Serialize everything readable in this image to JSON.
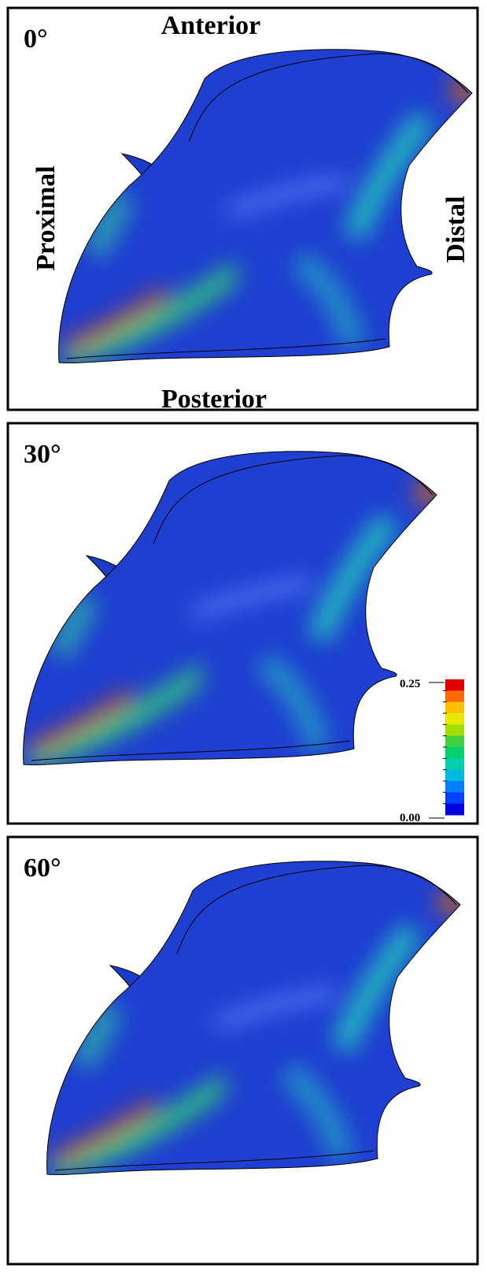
{
  "panels": [
    {
      "angle": "0°"
    },
    {
      "angle": "30°"
    },
    {
      "angle": "60°"
    }
  ],
  "orientation": {
    "anterior": "Anterior",
    "posterior": "Posterior",
    "proximal": "Proximal",
    "distal": "Distal"
  },
  "colorbar": {
    "max_label": "0.25",
    "min_label": "0.00",
    "colors": [
      "#e00000",
      "#ff6a00",
      "#ffc000",
      "#e8e800",
      "#a0e000",
      "#40d040",
      "#00d070",
      "#00d0b0",
      "#00b8e0",
      "#0080ff",
      "#0040ff",
      "#0000e0"
    ]
  }
}
